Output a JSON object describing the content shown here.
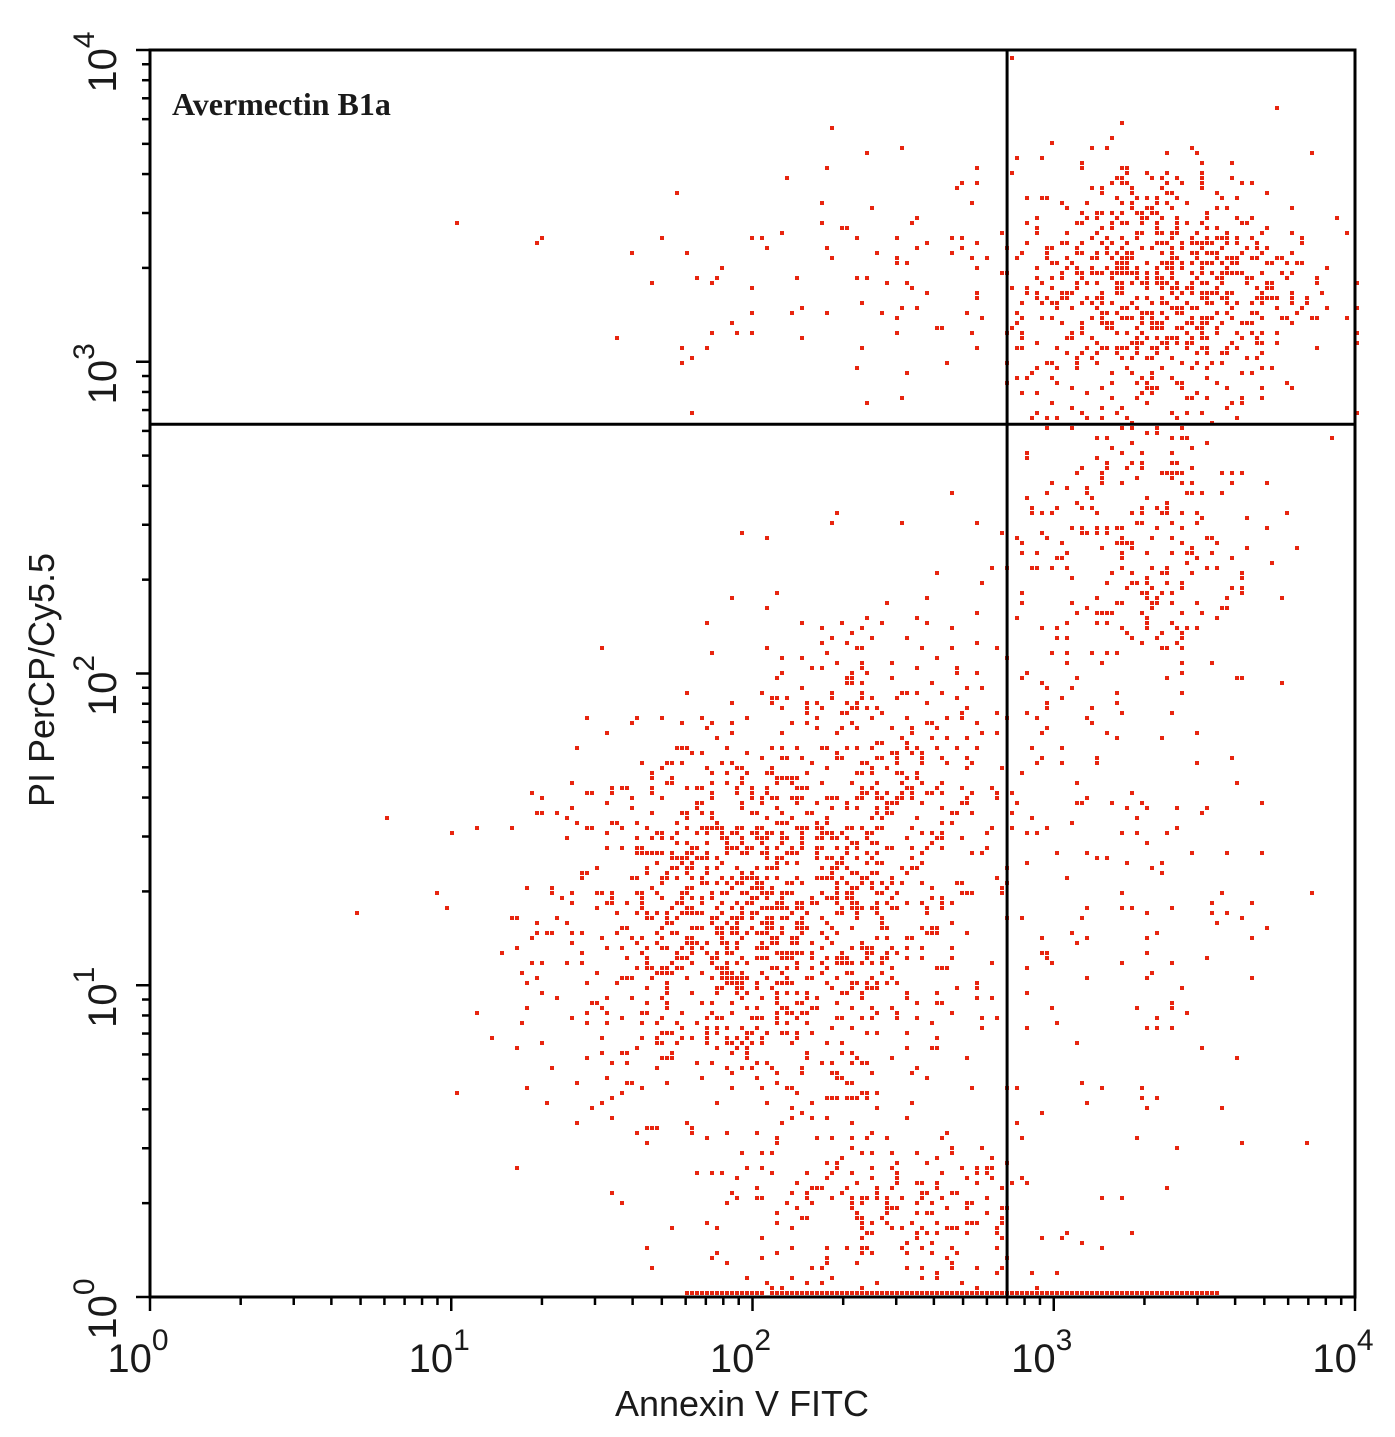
{
  "chart_data": {
    "type": "scatter",
    "title": "Avermectin B1a",
    "xlabel": "Annexin V FITC",
    "ylabel": "PI PerCP/Cy5.5",
    "x_scale": "log",
    "y_scale": "log",
    "xlim": [
      1,
      10000
    ],
    "ylim": [
      1,
      10000
    ],
    "x_ticks": [
      {
        "base": "10",
        "exp": "0"
      },
      {
        "base": "10",
        "exp": "1"
      },
      {
        "base": "10",
        "exp": "2"
      },
      {
        "base": "10",
        "exp": "3"
      },
      {
        "base": "10",
        "exp": "4"
      }
    ],
    "y_ticks": [
      {
        "base": "10",
        "exp": "0"
      },
      {
        "base": "10",
        "exp": "1"
      },
      {
        "base": "10",
        "exp": "2"
      },
      {
        "base": "10",
        "exp": "3"
      },
      {
        "base": "10",
        "exp": "4"
      }
    ],
    "quadrant_gates": {
      "x": 700,
      "y": 630
    },
    "point_color": "#e8250f",
    "grid": false,
    "clusters": [
      {
        "x_center": 100,
        "y_center": 15,
        "x_spread_log10": 0.35,
        "y_spread_log10": 0.3,
        "count": 1200
      },
      {
        "x_center": 250,
        "y_center": 50,
        "x_spread_log10": 0.3,
        "y_spread_log10": 0.3,
        "count": 350
      },
      {
        "x_center": 2200,
        "y_center": 1800,
        "x_spread_log10": 0.25,
        "y_spread_log10": 0.2,
        "count": 700
      },
      {
        "x_center": 1900,
        "y_center": 300,
        "x_spread_log10": 0.2,
        "y_spread_log10": 0.3,
        "count": 300
      },
      {
        "x_center": 300,
        "y_center": 1800,
        "x_spread_log10": 0.5,
        "y_spread_log10": 0.2,
        "count": 120
      },
      {
        "x_center": 1800,
        "y_center": 15,
        "x_spread_log10": 0.25,
        "y_spread_log10": 0.5,
        "count": 120
      },
      {
        "x_center": 300,
        "y_center": 1.8,
        "x_spread_log10": 0.3,
        "y_spread_log10": 0.15,
        "count": 250
      }
    ],
    "baseline_band": {
      "y": 1,
      "x_range": [
        60,
        3500
      ],
      "count": 500
    }
  }
}
